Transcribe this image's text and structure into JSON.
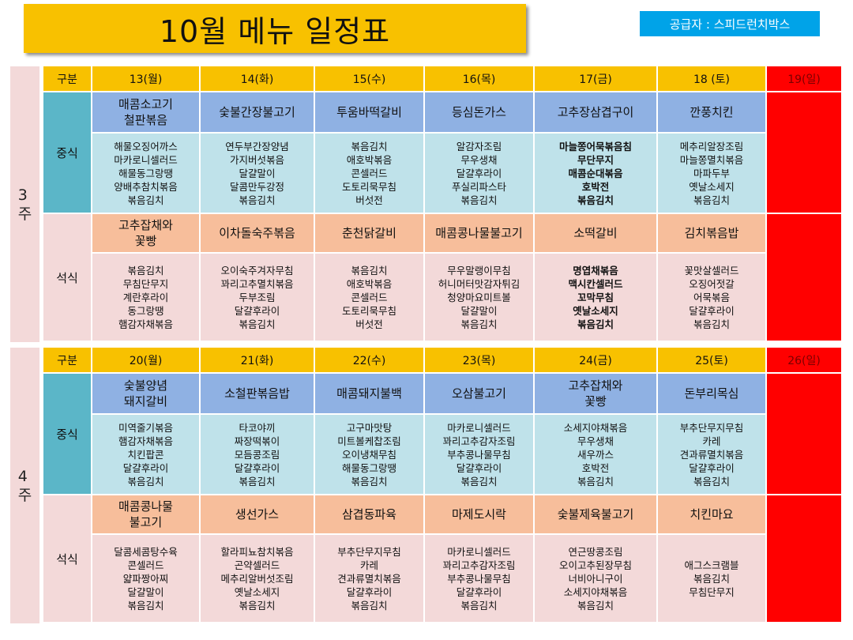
{
  "title": "10월  메뉴 일정표",
  "supplier": "공급자 : 스피드런치박스",
  "weeks": [
    {
      "label": "3\n주",
      "header": [
        "구분",
        "13(월)",
        "14(화)",
        "15(수)",
        "16(목)",
        "17(금)",
        "18 (토)",
        "19(일)"
      ],
      "lunch_label": "중식",
      "dinner_label": "석식",
      "lunch_main": [
        "매콤소고기\n철판볶음",
        "숯불간장불고기",
        "투움바떡갈비",
        "등심돈가스",
        "고추장삼겹구이",
        "깐풍치킨"
      ],
      "lunch_sides": [
        "해물오징어까스\n마카로니셀러드\n해물동그랑땡\n양배추참치볶음\n볶음김치",
        "연두부간장양념\n가지버섯볶음\n달걀말이\n달콤만두강정\n볶음김치",
        "볶음김치\n애호박볶음\n콘셀러드\n도토리묵무침\n버섯전",
        "알감자조림\n무우생채\n달걀후라이\n푸실리파스타\n볶음김치",
        "마늘쫑어묵볶음침\n무단무지\n매콤순대볶음\n호박전\n볶음김치",
        "메추리알장조림\n마늘쫑멸치볶음\n마파두부\n옛날소세지\n볶음김치"
      ],
      "dinner_main": [
        "고추잡채와\n꽃빵",
        "이차돌숙주볶음",
        "춘천닭갈비",
        "매콤콩나물불고기",
        "소떡갈비",
        "김치볶음밥"
      ],
      "dinner_sides": [
        "볶음김치\n무침단무지\n계란후라이\n동그랑땡\n햄감자채볶음",
        "오이숙주겨자무침\n꽈리고추멸치볶음\n두부조림\n달걀후라이\n볶음김치",
        "볶음김치\n애호박볶음\n콘셀러드\n도토리묵무침\n버섯전",
        "무우말랭이무침\n허니머터맛감자튀김\n청양마요미트볼\n달걀말이\n볶음김치",
        "명엽채볶음\n맥시칸셀러드\n꼬막무침\n옛날소세지\n볶음김치",
        "꽃맛살셀러드\n오징어젓갈\n어묵볶음\n달걀후라이\n볶음김치"
      ]
    },
    {
      "label": "4\n주",
      "header": [
        "구분",
        "20(월)",
        "21(화)",
        "22(수)",
        "23(목)",
        "24(금)",
        "25(토)",
        "26(일)"
      ],
      "lunch_label": "중식",
      "dinner_label": "석식",
      "lunch_main": [
        "숯불양념\n돼지갈비",
        "소철판볶음밥",
        "매콤돼지불백",
        "오삼불고기",
        "고추잡채와\n꽃빵",
        "돈부리목심"
      ],
      "lunch_sides": [
        "미역줄기볶음\n햄감자채볶음\n치킨팝콘\n달걀후라이\n볶음김치",
        "타코야끼\n짜장떡볶이\n모듬콩조림\n달걀후라이\n볶음김치",
        "고구마맛탕\n미트볼케찹조림\n오이냉채무침\n해물동그랑땡\n볶음김치",
        "마카로니셀러드\n꽈리고추감자조림\n부추콩나물무침\n달걀후라이\n볶음김치",
        "소세지야채볶음\n무우생채\n새우까스\n호박전\n볶음김치",
        "부추단무지무침\n카레\n견과류멸치볶음\n달걀후라이\n볶음김치"
      ],
      "dinner_main": [
        "매콤콩나물\n불고기",
        "생선가스",
        "삼겹동파육",
        "마제도시락",
        "숯불제육불고기",
        "치킨마요"
      ],
      "dinner_sides": [
        "달콤세콤탕수육\n콘셀러드\n얇파짱아찌\n달걀말이\n볶음김치",
        "할라피뇨참치볶음\n곤약셀러드\n메추리알버섯조림\n옛날소세지\n볶음김치",
        "부추단무지무침\n카레\n견과류멸치볶음\n달걀후라이\n볶음김치",
        "마카로니셀러드\n꽈리고추감자조림\n부추콩나물무침\n달걀후라이\n볶음김치",
        "연근땅콩조림\n오이고추된장무침\n너비아니구이\n소세지야채볶음\n볶음김치",
        "애그스크램블\n볶음김치\n무침단무지"
      ]
    }
  ]
}
